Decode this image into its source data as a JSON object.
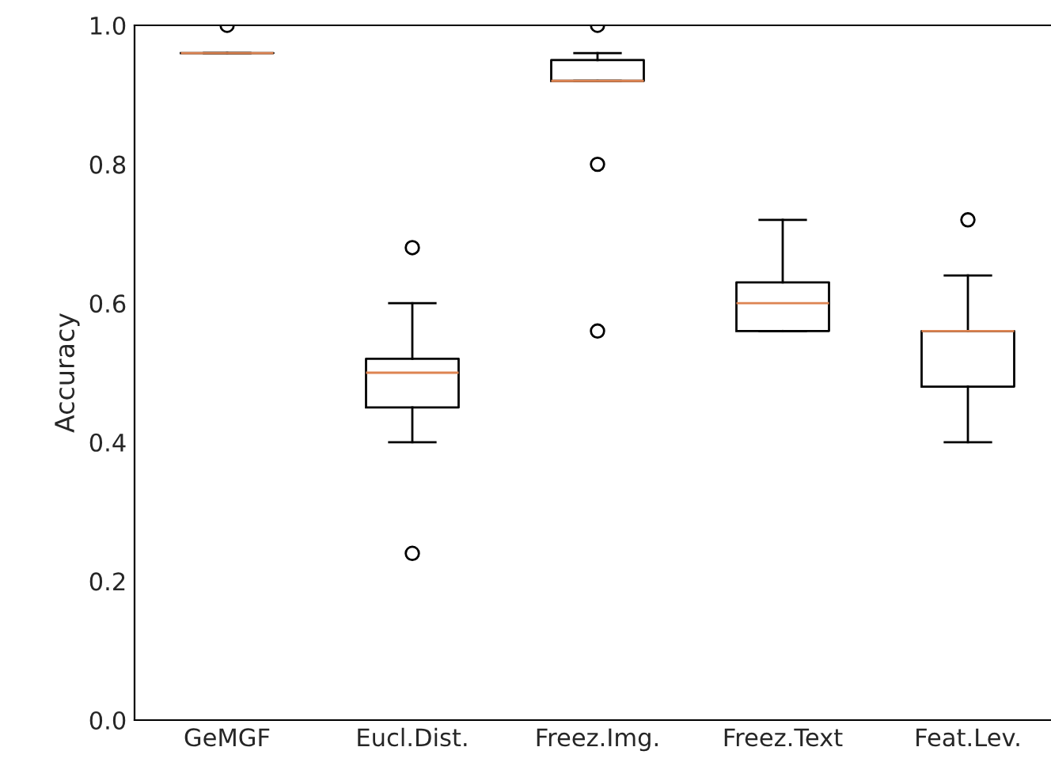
{
  "chart_data": {
    "type": "box",
    "ylabel": "Accuracy",
    "categories": [
      "GeMGF",
      "Eucl.Dist.",
      "Freez.Img.",
      "Freez.Text",
      "Feat.Lev."
    ],
    "series": [
      {
        "color": "#000000",
        "boxes": [
          {
            "low": 0.96,
            "q1": 0.96,
            "median": 0.96,
            "q3": 0.96,
            "high": 0.96,
            "outliers": [
              1.0
            ]
          },
          {
            "low": 0.4,
            "q1": 0.45,
            "median": 0.5,
            "q3": 0.52,
            "high": 0.6,
            "outliers": [
              0.68,
              0.24
            ]
          },
          {
            "low": 0.92,
            "q1": 0.92,
            "median": 0.92,
            "q3": 0.95,
            "high": 0.96,
            "outliers": [
              1.0,
              0.8,
              0.56
            ]
          },
          {
            "low": 0.56,
            "q1": 0.56,
            "median": 0.6,
            "q3": 0.63,
            "high": 0.72
          },
          {
            "low": 0.4,
            "q1": 0.48,
            "median": 0.56,
            "q3": 0.56,
            "high": 0.64,
            "outliers": [
              0.72
            ]
          }
        ]
      }
    ],
    "ylim": [
      0,
      1.0
    ],
    "yticks": [
      {
        "value": 0,
        "label": "0.0"
      },
      0.2,
      0.4,
      0.6,
      0.8,
      {
        "value": 1,
        "label": "1.0"
      }
    ],
    "grid": false
  }
}
